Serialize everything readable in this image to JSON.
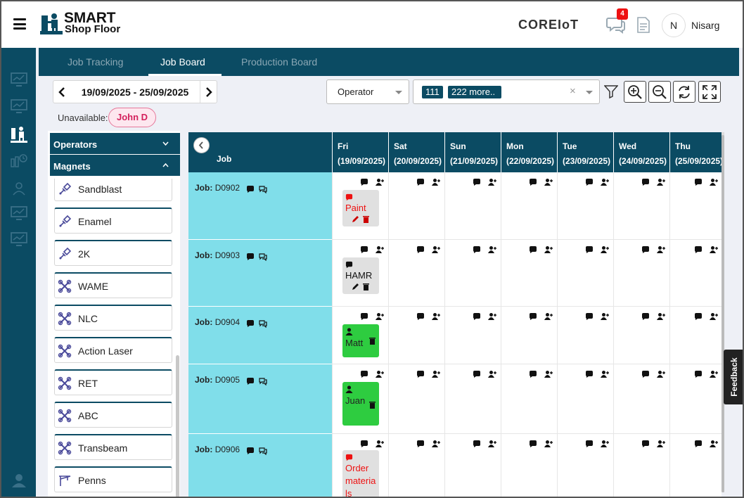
{
  "header": {
    "logo_line1": "SMART",
    "logo_line2": "Shop Floor",
    "brand": "COREIoT",
    "notifications_count": "4",
    "avatar_initial": "N",
    "user_name": "Nisarg"
  },
  "tabs": [
    {
      "label": "Job Tracking",
      "active": false
    },
    {
      "label": "Job Board",
      "active": true
    },
    {
      "label": "Production Board",
      "active": false
    }
  ],
  "toolbar": {
    "date_range": "19/09/2025 - 25/09/2025",
    "unavailable_label": "Unavailable:",
    "unavailable_chip": "John D",
    "operator_select": "Operator",
    "tag_count": "111",
    "tag_more": "222 more..",
    "clear_symbol": "×"
  },
  "left_panel": {
    "operators_header": "Operators",
    "magnets_header": "Magnets",
    "items": [
      {
        "label": "Sandblast",
        "icon": "spray-gun-icon"
      },
      {
        "label": "Enamel",
        "icon": "spray-gun-icon"
      },
      {
        "label": "2K",
        "icon": "spray-gun-icon"
      },
      {
        "label": "WAME",
        "icon": "tool-cross-icon"
      },
      {
        "label": "NLC",
        "icon": "tool-cross-icon"
      },
      {
        "label": "Action Laser",
        "icon": "tool-cross-icon"
      },
      {
        "label": "RET",
        "icon": "tool-cross-icon"
      },
      {
        "label": "ABC",
        "icon": "tool-cross-icon"
      },
      {
        "label": "Transbeam",
        "icon": "tool-cross-icon"
      },
      {
        "label": "Penns",
        "icon": "crane-icon"
      }
    ]
  },
  "board": {
    "job_header": "Job",
    "job_prefix": "Job:",
    "days": [
      {
        "name": "Fri",
        "date": "(19/09/2025)"
      },
      {
        "name": "Sat",
        "date": "(20/09/2025)"
      },
      {
        "name": "Sun",
        "date": "(21/09/2025)"
      },
      {
        "name": "Mon",
        "date": "(22/09/2025)"
      },
      {
        "name": "Tue",
        "date": "(23/09/2025)"
      },
      {
        "name": "Wed",
        "date": "(24/09/2025)"
      },
      {
        "name": "Thu",
        "date": "(25/09/2025)"
      }
    ],
    "rows": [
      {
        "job": "D0902",
        "card": {
          "text": "Paint",
          "style": "grey",
          "text_color": "#e11"
        }
      },
      {
        "job": "D0903",
        "card": {
          "text": "HAMR",
          "style": "grey",
          "text_color": "#111"
        }
      },
      {
        "job": "D0904",
        "card": {
          "text": "Matt",
          "style": "green",
          "text_color": "#111"
        }
      },
      {
        "job": "D0905",
        "card": {
          "text": "Juan",
          "style": "green",
          "text_color": "#111"
        }
      },
      {
        "job": "D0906",
        "card": {
          "text": "Order materials",
          "style": "grey",
          "text_color": "#e11"
        }
      }
    ]
  },
  "feedback_label": "Feedback",
  "colors": {
    "primary": "#0b4b63",
    "job_cell": "#80deea",
    "card_green": "#2ecc40",
    "chip_red": "#d4205c"
  }
}
